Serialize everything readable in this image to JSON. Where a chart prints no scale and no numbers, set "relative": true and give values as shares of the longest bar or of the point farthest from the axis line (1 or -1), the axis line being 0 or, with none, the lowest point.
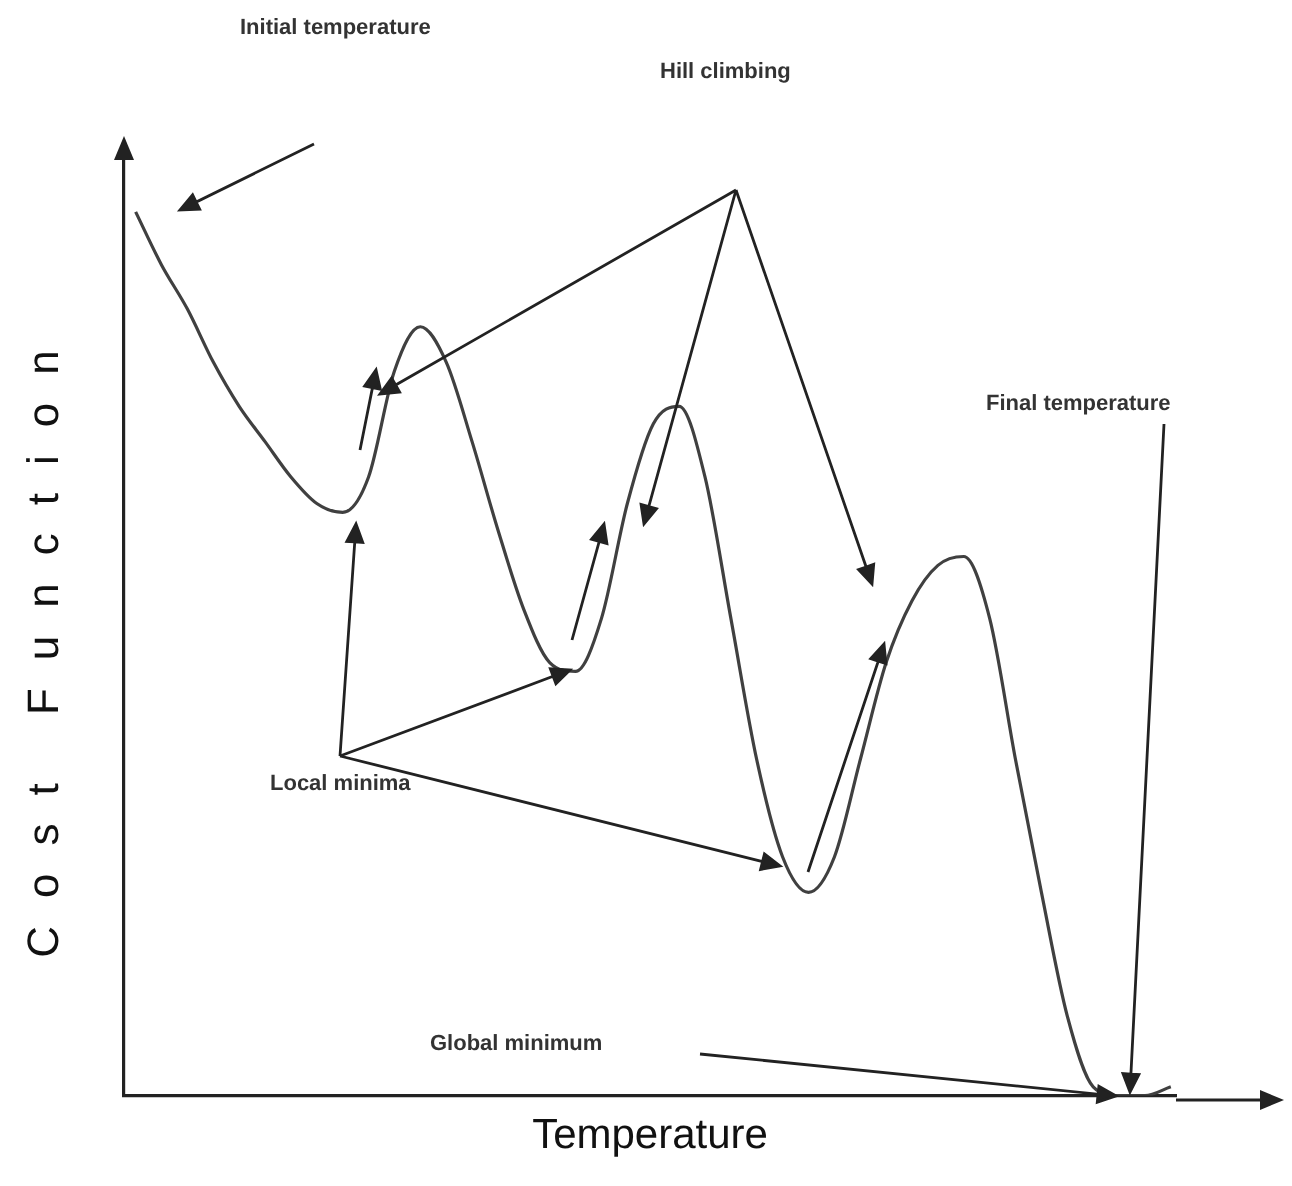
{
  "chart_data": {
    "type": "line",
    "xlabel": "Temperature",
    "ylabel": "Cost Function",
    "categories": [
      null,
      null,
      null,
      null,
      null,
      null,
      null,
      null,
      null,
      null,
      null,
      null,
      null,
      null,
      null,
      null,
      null,
      null,
      null,
      null,
      null,
      null,
      null,
      null,
      null,
      null,
      null,
      null,
      null,
      null,
      null,
      null,
      null,
      null,
      null,
      null,
      null,
      null,
      null,
      null,
      null
    ],
    "values": [
      1.0,
      0.94,
      0.89,
      0.83,
      0.78,
      0.74,
      0.7,
      0.67,
      0.66,
      0.7,
      0.82,
      0.87,
      0.83,
      0.74,
      0.64,
      0.55,
      0.49,
      0.48,
      0.54,
      0.67,
      0.76,
      0.78,
      0.7,
      0.54,
      0.38,
      0.27,
      0.23,
      0.27,
      0.38,
      0.49,
      0.56,
      0.6,
      0.61,
      0.54,
      0.38,
      0.23,
      0.09,
      0.01,
      0.0,
      0.0,
      0.01
    ],
    "color": "#404040",
    "relative": true,
    "marker": "none",
    "grid": false,
    "legend": false,
    "tick_labels": false,
    "annotations": [
      "Initial temperature",
      "Hill climbing",
      "Final temperature",
      "Local minima",
      "Global minimum"
    ]
  }
}
